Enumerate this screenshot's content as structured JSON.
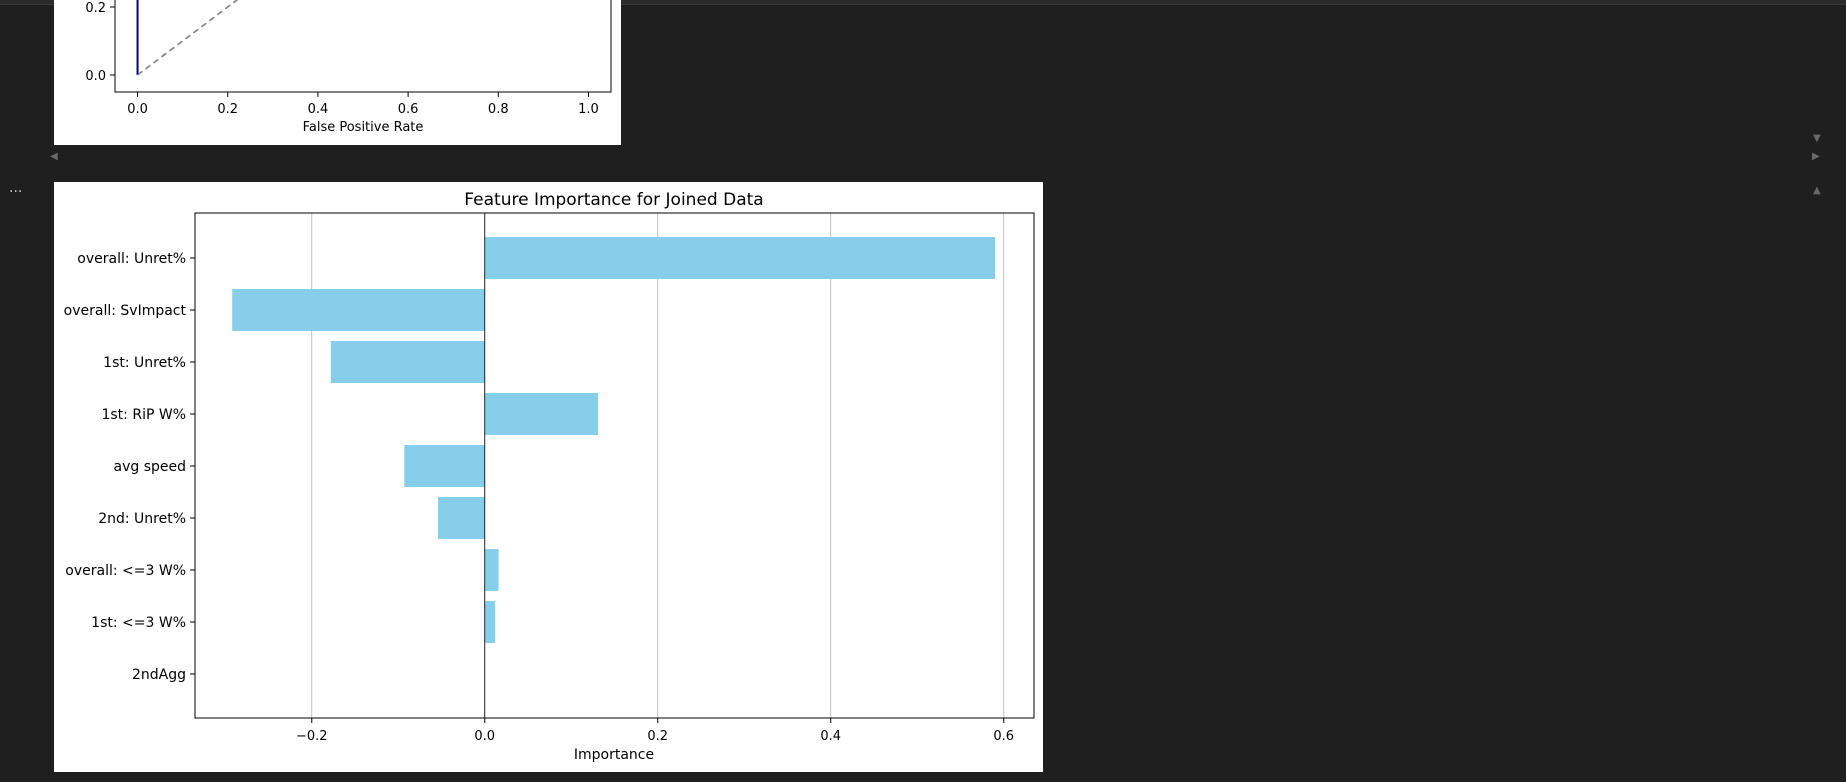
{
  "notebook": {
    "cell_menu_label": "...",
    "scroll_left_icon": "triangle-left-icon",
    "scroll_right_icon": "triangle-right-icon",
    "collapse_up_icon": "triangle-up-icon",
    "collapse_down_icon": "triangle-down-icon"
  },
  "chart_data": [
    {
      "type": "line",
      "title": "",
      "xlabel": "False Positive Rate",
      "ylabel": "",
      "xlim": [
        -0.05,
        1.05
      ],
      "x_ticks": [
        "0.0",
        "0.2",
        "0.4",
        "0.6",
        "0.8",
        "1.0"
      ],
      "y_ticks_visible": [
        "0.0",
        "0.2"
      ],
      "series": [
        {
          "name": "",
          "style": "solid",
          "color": "#00008b",
          "x": [
            0.0,
            0.0
          ],
          "y": [
            0.0,
            1.0
          ]
        },
        {
          "name": "",
          "style": "dashed",
          "color": "#808080",
          "x": [
            0.0,
            1.0
          ],
          "y": [
            0.0,
            1.0
          ]
        }
      ]
    },
    {
      "type": "bar",
      "orientation": "horizontal",
      "title": "Feature Importance for Joined Data",
      "xlabel": "Importance",
      "ylabel": "",
      "xlim": [
        -0.335,
        0.635
      ],
      "x_ticks": [
        "−0.2",
        "0.0",
        "0.2",
        "0.4",
        "0.6"
      ],
      "x_tick_values": [
        -0.2,
        0.0,
        0.2,
        0.4,
        0.6
      ],
      "grid": "x",
      "bar_color": "#87ceeb",
      "categories": [
        "overall: Unret%",
        "overall: SvImpact",
        "1st: Unret%",
        "1st: RiP W%",
        "avg speed",
        "2nd: Unret%",
        "overall: <=3 W%",
        "1st: <=3 W%",
        "2ndAgg"
      ],
      "values": [
        0.59,
        -0.292,
        -0.178,
        0.131,
        -0.093,
        -0.054,
        0.016,
        0.012,
        0.0
      ]
    }
  ]
}
